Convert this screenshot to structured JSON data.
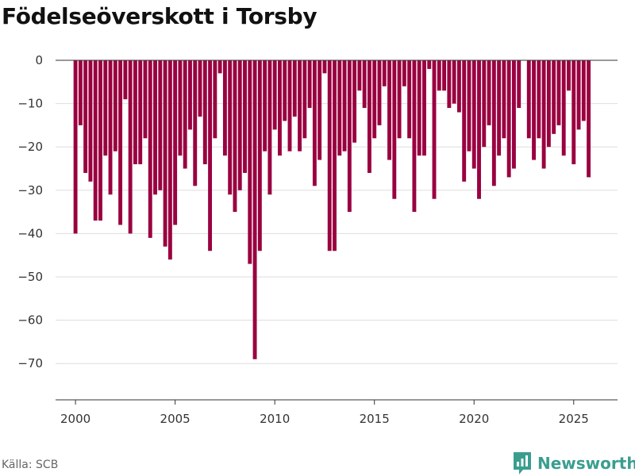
{
  "chart_data": {
    "type": "bar",
    "title": "Födelseöverskott i Torsby",
    "xlabel": "",
    "ylabel": "",
    "ylim": [
      -78,
      0
    ],
    "xlim": [
      1999.0,
      2027.2
    ],
    "yticks": [
      0,
      -10,
      -20,
      -30,
      -40,
      -50,
      -60,
      -70
    ],
    "ytick_labels": [
      "0",
      "−10",
      "−20",
      "−30",
      "−40",
      "−50",
      "−60",
      "−70"
    ],
    "xticks": [
      2000,
      2005,
      2010,
      2015,
      2020,
      2025
    ],
    "xtick_labels": [
      "2000",
      "2005",
      "2010",
      "2015",
      "2020",
      "2025"
    ],
    "grid": true,
    "bar_color": "#9a0040",
    "frequency": "quarterly",
    "start": 2000.0,
    "values": [
      -40,
      -15,
      -26,
      -28,
      -37,
      -37,
      -22,
      -31,
      -21,
      -38,
      -9,
      -40,
      -24,
      -24,
      -18,
      -41,
      -31,
      -30,
      -43,
      -46,
      -38,
      -22,
      -25,
      -16,
      -29,
      -13,
      -24,
      -44,
      -18,
      -3,
      -22,
      -31,
      -35,
      -30,
      -26,
      -47,
      -69,
      -44,
      -21,
      -31,
      -16,
      -22,
      -14,
      -21,
      -13,
      -21,
      -18,
      -11,
      -29,
      -23,
      -3,
      -44,
      -44,
      -22,
      -21,
      -35,
      -19,
      -7,
      -11,
      -26,
      -18,
      -15,
      -6,
      -23,
      -32,
      -18,
      -6,
      -18,
      -35,
      -22,
      -22,
      -2,
      -32,
      -7,
      -7,
      -11,
      -10,
      -12,
      -28,
      -21,
      -25,
      -32,
      -20,
      -15,
      -29,
      -22,
      -18,
      -27,
      -25,
      -11,
      null,
      -18,
      -23,
      -18,
      -25,
      -20,
      -17,
      -15,
      -22,
      -7,
      -24,
      -16,
      -14,
      -27
    ]
  },
  "footer": {
    "source": "Källa: SCB",
    "brand": "Newsworthy"
  },
  "colors": {
    "brand": "#3a9e8f",
    "grid": "#dddddd",
    "axis": "#333333"
  }
}
